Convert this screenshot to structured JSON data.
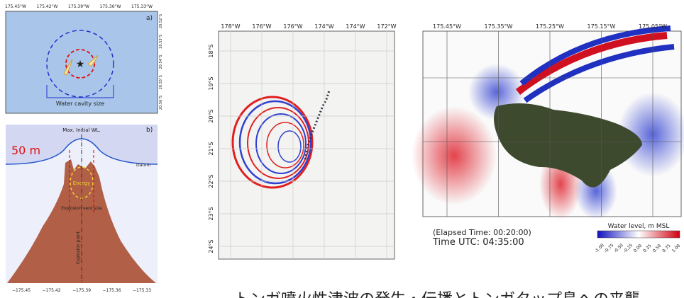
{
  "panel_a": {
    "label": "a)",
    "top_ticks": [
      "175.45°W",
      "175.42°W",
      "175.39°W",
      "175.36°W",
      "175.33°W"
    ],
    "right_ticks": [
      "20.52°S",
      "20.53°S",
      "20.54°S",
      "20.55°S",
      "20.56°S"
    ],
    "cavity_label": "Water cavity size"
  },
  "panel_b": {
    "label": "b)",
    "max_wl": "Max. Initial WL.",
    "height": "50 m",
    "datum": "Datum",
    "energy": "Energy",
    "vent": "Explosion vent size",
    "point": "Explosion point",
    "bottom_ticks": [
      "−175.45",
      "−175.42",
      "−175.39",
      "−175.36",
      "−175.33"
    ]
  },
  "map_regional": {
    "top_ticks": [
      "178°W",
      "176°W",
      "176°W",
      "174°W",
      "174°W",
      "172°W"
    ],
    "left_ticks": [
      "18°S",
      "19°S",
      "20°S",
      "21°S",
      "22°S",
      "23°S",
      "24°S"
    ]
  },
  "map_local": {
    "top_ticks": [
      "175.45°W",
      "175.35°W",
      "175.25°W",
      "175.15°W",
      "175.05°W"
    ],
    "elapsed": "(Elapsed Time: 00:20:00)",
    "time_utc": "Time UTC: 04:35:00",
    "colorbar_title": "Water level, m MSL",
    "colorbar_ticks": [
      "-1.00",
      "-0.75",
      "-0.50",
      "-0.25",
      "0.00",
      "0.25",
      "0.50",
      "0.75",
      "1.00"
    ]
  },
  "caption": "トンガ噴火性津波の発生・伝播とトンガタップ島への来襲"
}
